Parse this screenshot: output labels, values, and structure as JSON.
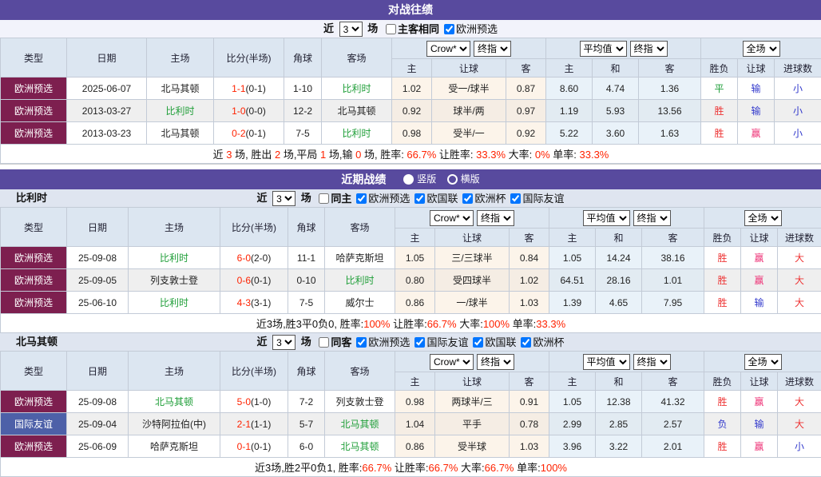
{
  "colors": {
    "title_purple": "#584A9E",
    "header_blue": "#dce6f1",
    "type_maroon": "#7D1F4F",
    "type_blue": "#4D60A8",
    "team_green": "#1f9e38",
    "score_red": "#ff2200",
    "win_red": "#ee3333",
    "win_pink": "#ee3377",
    "lose_blue": "#3239cc",
    "draw_green": "#1d9e38",
    "crow_col_bg": "#fcf4ea",
    "avg_col_bg": "#e9f2f9"
  },
  "shared": {
    "near_label": "近",
    "match_count": "3",
    "matches_label": "场",
    "header": {
      "cols": [
        "类型",
        "日期",
        "主场",
        "比分(半场)",
        "角球",
        "客场"
      ],
      "selects": {
        "crow": "Crow*",
        "final": "终指",
        "avg": "平均值",
        "full": "全场"
      },
      "subcols": [
        "主",
        "让球",
        "客",
        "主",
        "和",
        "客",
        "胜负",
        "让球",
        "进球数"
      ]
    }
  },
  "h2h": {
    "title": "对战往绩",
    "checkboxes": [
      {
        "name": "same-home-away",
        "label": "主客相同",
        "checked": false,
        "bold": true
      },
      {
        "name": "euro-qualifiers",
        "label": "欧洲预选",
        "checked": true,
        "bold": false
      }
    ],
    "rows": [
      {
        "comp": "欧洲预选",
        "style": "maroon",
        "date": "2025-06-07",
        "home": "北马其顿",
        "hg": false,
        "score": "1-1",
        "half": "(0-1)",
        "corner": "1-10",
        "away": "比利时",
        "ag": true,
        "crow": [
          "1.02",
          "受一/球半",
          "0.87"
        ],
        "avg": [
          "8.60",
          "4.74",
          "1.36"
        ],
        "out": [
          {
            "t": "平",
            "c": "cgreen"
          },
          {
            "t": "输",
            "c": "cblue"
          },
          {
            "t": "小",
            "c": "cblue"
          }
        ]
      },
      {
        "comp": "欧洲预选",
        "style": "maroon",
        "date": "2013-03-27",
        "home": "比利时",
        "hg": true,
        "score": "1-0",
        "half": "(0-0)",
        "corner": "12-2",
        "away": "北马其顿",
        "ag": false,
        "crow": [
          "0.92",
          "球半/两",
          "0.97"
        ],
        "avg": [
          "1.19",
          "5.93",
          "13.56"
        ],
        "out": [
          {
            "t": "胜",
            "c": "cred"
          },
          {
            "t": "输",
            "c": "cblue"
          },
          {
            "t": "小",
            "c": "cblue"
          }
        ]
      },
      {
        "comp": "欧洲预选",
        "style": "maroon",
        "date": "2013-03-23",
        "home": "北马其顿",
        "hg": false,
        "score": "0-2",
        "half": "(0-1)",
        "corner": "7-5",
        "away": "比利时",
        "ag": true,
        "crow": [
          "0.98",
          "受半/一",
          "0.92"
        ],
        "avg": [
          "5.22",
          "3.60",
          "1.63"
        ],
        "out": [
          {
            "t": "胜",
            "c": "cred"
          },
          {
            "t": "赢",
            "c": "pink"
          },
          {
            "t": "小",
            "c": "cblue"
          }
        ]
      }
    ],
    "summary": [
      {
        "t": "近 "
      },
      {
        "t": "3",
        "red": true
      },
      {
        "t": " 场, 胜出 "
      },
      {
        "t": "2",
        "red": true
      },
      {
        "t": " 场,平局 "
      },
      {
        "t": "1",
        "red": true
      },
      {
        "t": " 场,输 "
      },
      {
        "t": "0",
        "red": true
      },
      {
        "t": " 场, 胜率: "
      },
      {
        "t": "66.7%",
        "red": true
      },
      {
        "t": " 让胜率: "
      },
      {
        "t": "33.3%",
        "red": true
      },
      {
        "t": " 大率: "
      },
      {
        "t": "0%",
        "red": true
      },
      {
        "t": " 单率: "
      },
      {
        "t": "33.3%",
        "red": true
      }
    ]
  },
  "recent": {
    "title": "近期战绩",
    "view_options": [
      {
        "name": "vertical-layout",
        "label": "竖版",
        "selected": true
      },
      {
        "name": "horizontal-layout",
        "label": "横版",
        "selected": false
      }
    ],
    "belgium": {
      "label": "比利时",
      "checkboxes": [
        {
          "name": "same-home",
          "label": "同主",
          "checked": false,
          "bold": true
        },
        {
          "name": "euro-qualifiers",
          "label": "欧洲预选",
          "checked": true,
          "bold": false
        },
        {
          "name": "nations-league",
          "label": "欧国联",
          "checked": true,
          "bold": false
        },
        {
          "name": "euro-cup",
          "label": "欧洲杯",
          "checked": true,
          "bold": false
        },
        {
          "name": "friendly",
          "label": "国际友谊",
          "checked": true,
          "bold": false
        }
      ],
      "rows": [
        {
          "comp": "欧洲预选",
          "style": "maroon",
          "date": "25-09-08",
          "home": "比利时",
          "hg": true,
          "score": "6-0",
          "half": "(2-0)",
          "corner": "11-1",
          "away": "哈萨克斯坦",
          "ag": false,
          "crow": [
            "1.05",
            "三/三球半",
            "0.84"
          ],
          "avg": [
            "1.05",
            "14.24",
            "38.16"
          ],
          "out": [
            {
              "t": "胜",
              "c": "cred"
            },
            {
              "t": "赢",
              "c": "pink"
            },
            {
              "t": "大",
              "c": "cred"
            }
          ]
        },
        {
          "comp": "欧洲预选",
          "style": "maroon",
          "date": "25-09-05",
          "home": "列支敦士登",
          "hg": false,
          "score": "0-6",
          "half": "(0-1)",
          "corner": "0-10",
          "away": "比利时",
          "ag": true,
          "crow": [
            "0.80",
            "受四球半",
            "1.02"
          ],
          "avg": [
            "64.51",
            "28.16",
            "1.01"
          ],
          "out": [
            {
              "t": "胜",
              "c": "cred"
            },
            {
              "t": "赢",
              "c": "pink"
            },
            {
              "t": "大",
              "c": "cred"
            }
          ]
        },
        {
          "comp": "欧洲预选",
          "style": "maroon",
          "date": "25-06-10",
          "home": "比利时",
          "hg": true,
          "score": "4-3",
          "half": "(3-1)",
          "corner": "7-5",
          "away": "威尔士",
          "ag": false,
          "crow": [
            "0.86",
            "一/球半",
            "1.03"
          ],
          "avg": [
            "1.39",
            "4.65",
            "7.95"
          ],
          "out": [
            {
              "t": "胜",
              "c": "cred"
            },
            {
              "t": "输",
              "c": "cblue"
            },
            {
              "t": "大",
              "c": "cred"
            }
          ]
        }
      ],
      "summary": [
        {
          "t": "近3场,胜3平0负0, 胜率:"
        },
        {
          "t": "100%",
          "red": true
        },
        {
          "t": " 让胜率:"
        },
        {
          "t": "66.7%",
          "red": true
        },
        {
          "t": " 大率:"
        },
        {
          "t": "100%",
          "red": true
        },
        {
          "t": " 单率:"
        },
        {
          "t": "33.3%",
          "red": true
        }
      ]
    },
    "macedonia": {
      "label": "北马其顿",
      "checkboxes": [
        {
          "name": "same-away",
          "label": "同客",
          "checked": false,
          "bold": true
        },
        {
          "name": "euro-qualifiers",
          "label": "欧洲预选",
          "checked": true,
          "bold": false
        },
        {
          "name": "friendly",
          "label": "国际友谊",
          "checked": true,
          "bold": false
        },
        {
          "name": "nations-league",
          "label": "欧国联",
          "checked": true,
          "bold": false
        },
        {
          "name": "euro-cup",
          "label": "欧洲杯",
          "checked": true,
          "bold": false
        }
      ],
      "rows": [
        {
          "comp": "欧洲预选",
          "style": "maroon",
          "date": "25-09-08",
          "home": "北马其顿",
          "hg": true,
          "score": "5-0",
          "half": "(1-0)",
          "corner": "7-2",
          "away": "列支敦士登",
          "ag": false,
          "crow": [
            "0.98",
            "两球半/三",
            "0.91"
          ],
          "avg": [
            "1.05",
            "12.38",
            "41.32"
          ],
          "out": [
            {
              "t": "胜",
              "c": "cred"
            },
            {
              "t": "赢",
              "c": "pink"
            },
            {
              "t": "大",
              "c": "cred"
            }
          ]
        },
        {
          "comp": "国际友谊",
          "style": "blue",
          "date": "25-09-04",
          "home": "沙特阿拉伯(中)",
          "hg": false,
          "score": "2-1",
          "half": "(1-1)",
          "corner": "5-7",
          "away": "北马其顿",
          "ag": true,
          "crow": [
            "1.04",
            "平手",
            "0.78"
          ],
          "avg": [
            "2.99",
            "2.85",
            "2.57"
          ],
          "out": [
            {
              "t": "负",
              "c": "cblue"
            },
            {
              "t": "输",
              "c": "cblue"
            },
            {
              "t": "大",
              "c": "cred"
            }
          ]
        },
        {
          "comp": "欧洲预选",
          "style": "maroon",
          "date": "25-06-09",
          "home": "哈萨克斯坦",
          "hg": false,
          "score": "0-1",
          "half": "(0-1)",
          "corner": "6-0",
          "away": "北马其顿",
          "ag": true,
          "crow": [
            "0.86",
            "受半球",
            "1.03"
          ],
          "avg": [
            "3.96",
            "3.22",
            "2.01"
          ],
          "out": [
            {
              "t": "胜",
              "c": "cred"
            },
            {
              "t": "赢",
              "c": "pink"
            },
            {
              "t": "小",
              "c": "cblue"
            }
          ]
        }
      ],
      "summary": [
        {
          "t": "近3场,胜2平0负1, 胜率:"
        },
        {
          "t": "66.7%",
          "red": true
        },
        {
          "t": " 让胜率:"
        },
        {
          "t": "66.7%",
          "red": true
        },
        {
          "t": " 大率:"
        },
        {
          "t": "66.7%",
          "red": true
        },
        {
          "t": " 单率:"
        },
        {
          "t": "100%",
          "red": true
        }
      ]
    }
  }
}
